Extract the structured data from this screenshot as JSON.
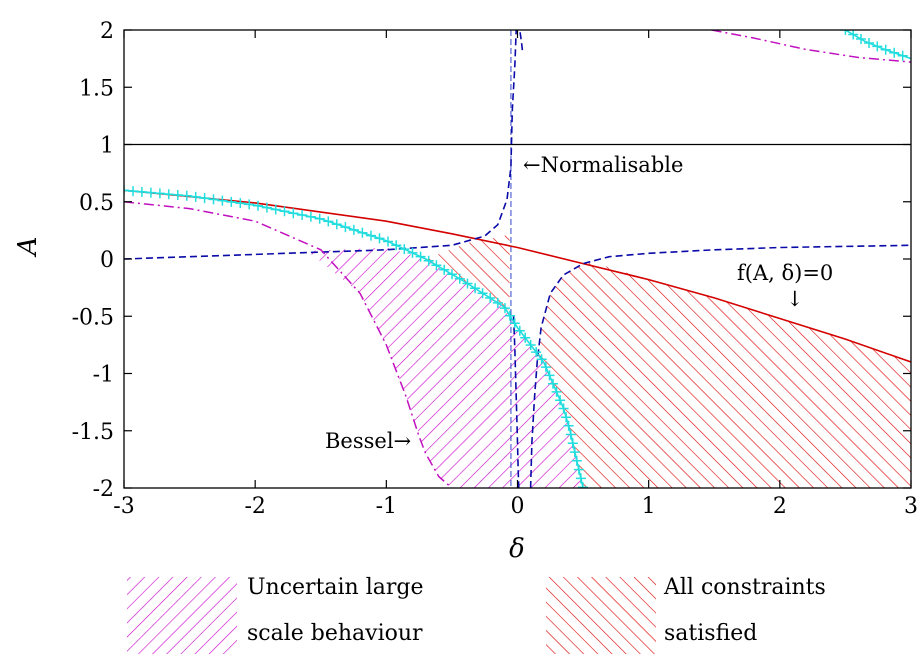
{
  "chart_data": {
    "type": "line",
    "xlabel": "δ",
    "ylabel": "A",
    "xlim": [
      -3,
      3
    ],
    "ylim": [
      -2,
      2
    ],
    "x_ticks": [
      "-3",
      "-2",
      "-1",
      "0",
      "1",
      "2",
      "3"
    ],
    "y_ticks": [
      "2",
      "1.5",
      "1",
      "0.5",
      "0",
      "-0.5",
      "-1",
      "-1.5",
      "-2"
    ],
    "grid": false,
    "reference_lines": [
      {
        "axis": "y",
        "value": 1
      },
      {
        "axis": "x",
        "value": -0.05
      }
    ],
    "series": [
      {
        "style": "solid-red",
        "x": [
          -3,
          -2,
          -1,
          -0.5,
          0,
          0.5,
          1,
          1.5,
          2,
          2.5,
          3
        ],
        "y": [
          0.6,
          0.49,
          0.33,
          0.22,
          0.1,
          -0.04,
          -0.18,
          -0.34,
          -0.52,
          -0.7,
          -0.9
        ]
      },
      {
        "style": "dashed-blue",
        "x": [
          -3,
          -2,
          -1,
          -0.5,
          -0.25,
          -0.15,
          -0.08,
          -0.05,
          -0.04,
          -0.02,
          -0.01
        ],
        "y": [
          0.0,
          0.04,
          0.08,
          0.12,
          0.2,
          0.3,
          0.52,
          0.8,
          1.3,
          1.7,
          2.0
        ]
      },
      {
        "style": "dashed-blue",
        "x": [
          0.02,
          0.03,
          0.04
        ],
        "y": [
          1.98,
          1.9,
          1.8
        ]
      },
      {
        "style": "dashed-blue",
        "x": [
          -0.03,
          -0.02,
          -0.01,
          0.0,
          0.005,
          0.01
        ],
        "y": [
          -0.5,
          -0.8,
          -1.2,
          -1.6,
          -1.85,
          -2.0
        ]
      },
      {
        "style": "dashed-blue",
        "x": [
          0.1,
          0.11,
          0.13,
          0.15,
          0.18,
          0.25,
          0.35,
          0.5,
          0.7,
          1,
          1.5,
          2,
          3
        ],
        "y": [
          -2.0,
          -1.6,
          -1.2,
          -0.9,
          -0.6,
          -0.3,
          -0.14,
          -0.04,
          0.02,
          0.05,
          0.08,
          0.1,
          0.12
        ]
      },
      {
        "style": "dashdot-magenta",
        "x": [
          -3,
          -2.5,
          -2,
          -1.5,
          -1.2,
          -1.0,
          -0.85,
          -0.75,
          -0.7,
          -0.6,
          -0.5
        ],
        "y": [
          0.5,
          0.44,
          0.33,
          0.08,
          -0.3,
          -0.75,
          -1.2,
          -1.55,
          -1.7,
          -1.9,
          -2.0
        ]
      },
      {
        "style": "dashdot-magenta",
        "x": [
          1.48,
          1.8,
          2.2,
          2.6,
          3.0
        ],
        "y": [
          2.0,
          1.93,
          1.83,
          1.76,
          1.72
        ]
      },
      {
        "style": "cyan-plus",
        "x": [
          -3,
          -2.5,
          -2,
          -1.5,
          -1,
          -0.7,
          -0.4,
          -0.1,
          0,
          0.2,
          0.35,
          0.4,
          0.45,
          0.5
        ],
        "y": [
          0.6,
          0.55,
          0.47,
          0.35,
          0.16,
          0.0,
          -0.2,
          -0.42,
          -0.6,
          -0.9,
          -1.3,
          -1.5,
          -1.75,
          -2.0
        ]
      },
      {
        "style": "cyan-plus",
        "x": [
          2.5,
          2.65,
          2.8,
          3.0
        ],
        "y": [
          2.0,
          1.9,
          1.83,
          1.75
        ]
      }
    ],
    "hatched_regions": [
      {
        "name": "Uncertain large scale behaviour",
        "color": "#cc00cc",
        "direction": "backslash",
        "polygon": [
          [
            -1.6,
            0.07
          ],
          [
            -1.0,
            0.1
          ],
          [
            -0.7,
            0.0
          ],
          [
            -0.4,
            -0.2
          ],
          [
            -0.1,
            -0.42
          ],
          [
            0,
            -0.6
          ],
          [
            0.2,
            -0.9
          ],
          [
            0.35,
            -1.3
          ],
          [
            0.45,
            -1.75
          ],
          [
            0.5,
            -2.0
          ],
          [
            -0.5,
            -2.0
          ],
          [
            -0.6,
            -1.9
          ],
          [
            -0.7,
            -1.7
          ],
          [
            -0.85,
            -1.2
          ],
          [
            -1.0,
            -0.75
          ],
          [
            -1.2,
            -0.3
          ]
        ]
      },
      {
        "name": "All constraints satisfied",
        "color": "#dd0000",
        "direction": "slash",
        "polygon": [
          [
            -0.38,
            0.14
          ],
          [
            -0.1,
            0.2
          ],
          [
            -0.06,
            0.25
          ],
          [
            -0.06,
            -0.45
          ],
          [
            -0.1,
            -0.42
          ],
          [
            -0.3,
            -0.28
          ],
          [
            -0.4,
            -0.2
          ],
          [
            -0.7,
            0.0
          ]
        ]
      },
      {
        "name": "All constraints satisfied",
        "color": "#dd0000",
        "direction": "slash",
        "polygon": [
          [
            0.15,
            -0.9
          ],
          [
            0.18,
            -0.6
          ],
          [
            0.25,
            -0.3
          ],
          [
            0.35,
            -0.14
          ],
          [
            0.5,
            -0.04
          ],
          [
            0.55,
            -0.02
          ],
          [
            1,
            -0.18
          ],
          [
            1.5,
            -0.34
          ],
          [
            2,
            -0.52
          ],
          [
            2.5,
            -0.7
          ],
          [
            3,
            -0.9
          ],
          [
            3,
            -2.0
          ],
          [
            0.5,
            -2.0
          ],
          [
            0.45,
            -1.75
          ],
          [
            0.35,
            -1.3
          ],
          [
            0.2,
            -0.9
          ]
        ]
      }
    ],
    "annotations": {
      "normalisable": "←Normalisable",
      "f_zero": "f(A, δ)=0",
      "f_arrow": "↓",
      "bessel": "Bessel→"
    },
    "legend": {
      "placement": "bottom",
      "entries": [
        {
          "line1": "Uncertain large",
          "line2": "scale behaviour"
        },
        {
          "line1": "All constraints",
          "line2": "satisfied"
        }
      ]
    }
  }
}
